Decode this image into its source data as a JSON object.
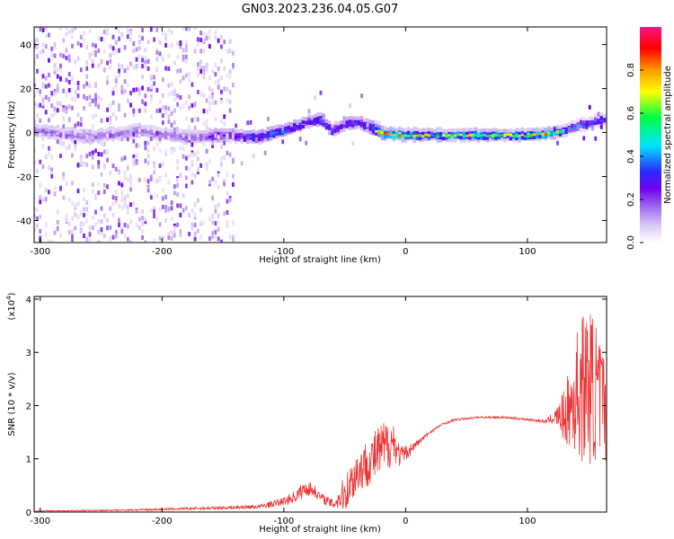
{
  "title": "GN03.2023.236.04.05.G07",
  "colors": {
    "snr_line": "#ee3333",
    "colormap": [
      "#ffffff",
      "#d9c8f5",
      "#a470ec",
      "#6f00f0",
      "#2a2aff",
      "#00e5ff",
      "#00ff44",
      "#ffff00",
      "#ff9900",
      "#ff0000",
      "#ff1080"
    ]
  },
  "chart_data": [
    {
      "type": "heatmap",
      "xlabel": "Height of straight line (km)",
      "ylabel": "Frequency (Hz)",
      "xlim": [
        -305,
        165
      ],
      "ylim": [
        -50,
        48
      ],
      "xticks": [
        -300,
        -200,
        -100,
        0,
        100
      ],
      "xtick_labels": [
        "-300",
        "-200",
        "-100",
        "0",
        "100"
      ],
      "yticks": [
        -40,
        -20,
        0,
        20,
        40
      ],
      "ytick_labels": [
        "-40",
        "-20",
        "0",
        "20",
        "40"
      ],
      "colorbar": {
        "label": "Normalized spectral amplitude",
        "range": [
          0,
          1
        ],
        "ticks": [
          0.0,
          0.2,
          0.4,
          0.6,
          0.8
        ],
        "tick_labels": [
          "0.0",
          "0.2",
          "0.4",
          "0.6",
          "0.8"
        ]
      },
      "ridge": {
        "x": [
          -300,
          -260,
          -220,
          -180,
          -150,
          -120,
          -100,
          -80,
          -70,
          -60,
          -50,
          -40,
          -30,
          -20,
          0,
          20,
          60,
          100,
          120,
          130,
          140,
          150,
          160
        ],
        "frequency": [
          1,
          -2,
          1,
          -2,
          -1,
          -2,
          1,
          5,
          6,
          1,
          4,
          5,
          3,
          0,
          -1,
          -1,
          -1,
          -1,
          0,
          1,
          3,
          4,
          6
        ],
        "amplitude": [
          0.22,
          0.2,
          0.2,
          0.22,
          0.3,
          0.42,
          0.45,
          0.4,
          0.42,
          0.38,
          0.4,
          0.38,
          0.4,
          0.82,
          0.7,
          0.66,
          0.68,
          0.66,
          0.78,
          0.45,
          0.42,
          0.4,
          0.42
        ]
      }
    },
    {
      "type": "line",
      "xlabel": "Height of straight line (km)",
      "ylabel": "SNR (10 * v/v)",
      "y_multiplier_label": "(x10",
      "y_multiplier_exp": "4",
      "xlim": [
        -305,
        165
      ],
      "ylim": [
        0,
        4.05
      ],
      "xticks": [
        -300,
        -200,
        -100,
        0,
        100
      ],
      "xtick_labels": [
        "-300",
        "-200",
        "-100",
        "0",
        "100"
      ],
      "yticks": [
        0,
        1,
        2,
        3,
        4
      ],
      "ytick_labels": [
        "0",
        "1",
        "2",
        "3",
        "4"
      ],
      "series": [
        {
          "x": [
            -305,
            -250,
            -200,
            -150,
            -120,
            -110,
            -100,
            -90,
            -85,
            -80,
            -75,
            -70,
            -60,
            -50,
            -45,
            -40,
            -35,
            -30,
            -25,
            -20,
            -15,
            -10,
            -5,
            0,
            10,
            20,
            30,
            40,
            60,
            80,
            100,
            115,
            120,
            125,
            130,
            135,
            140,
            145,
            150,
            155,
            160,
            165
          ],
          "values": [
            0.02,
            0.03,
            0.05,
            0.08,
            0.1,
            0.15,
            0.2,
            0.3,
            0.4,
            0.45,
            0.4,
            0.28,
            0.15,
            0.35,
            0.55,
            0.75,
            0.85,
            0.95,
            1.05,
            1.15,
            1.25,
            1.35,
            1.05,
            1.1,
            1.3,
            1.5,
            1.65,
            1.73,
            1.78,
            1.78,
            1.74,
            1.7,
            1.76,
            1.8,
            1.8,
            1.95,
            2.2,
            2.35,
            2.4,
            2.3,
            2.1,
            1.9
          ],
          "noise": [
            0.01,
            0.01,
            0.02,
            0.03,
            0.04,
            0.06,
            0.08,
            0.12,
            0.15,
            0.15,
            0.12,
            0.08,
            0.1,
            0.35,
            0.4,
            0.45,
            0.45,
            0.45,
            0.5,
            0.55,
            0.5,
            0.4,
            0.2,
            0.15,
            0.06,
            0.03,
            0.02,
            0.02,
            0.02,
            0.02,
            0.02,
            0.03,
            0.1,
            0.2,
            0.5,
            0.8,
            1.2,
            1.4,
            1.5,
            1.4,
            1.2,
            1.0
          ]
        }
      ]
    }
  ]
}
